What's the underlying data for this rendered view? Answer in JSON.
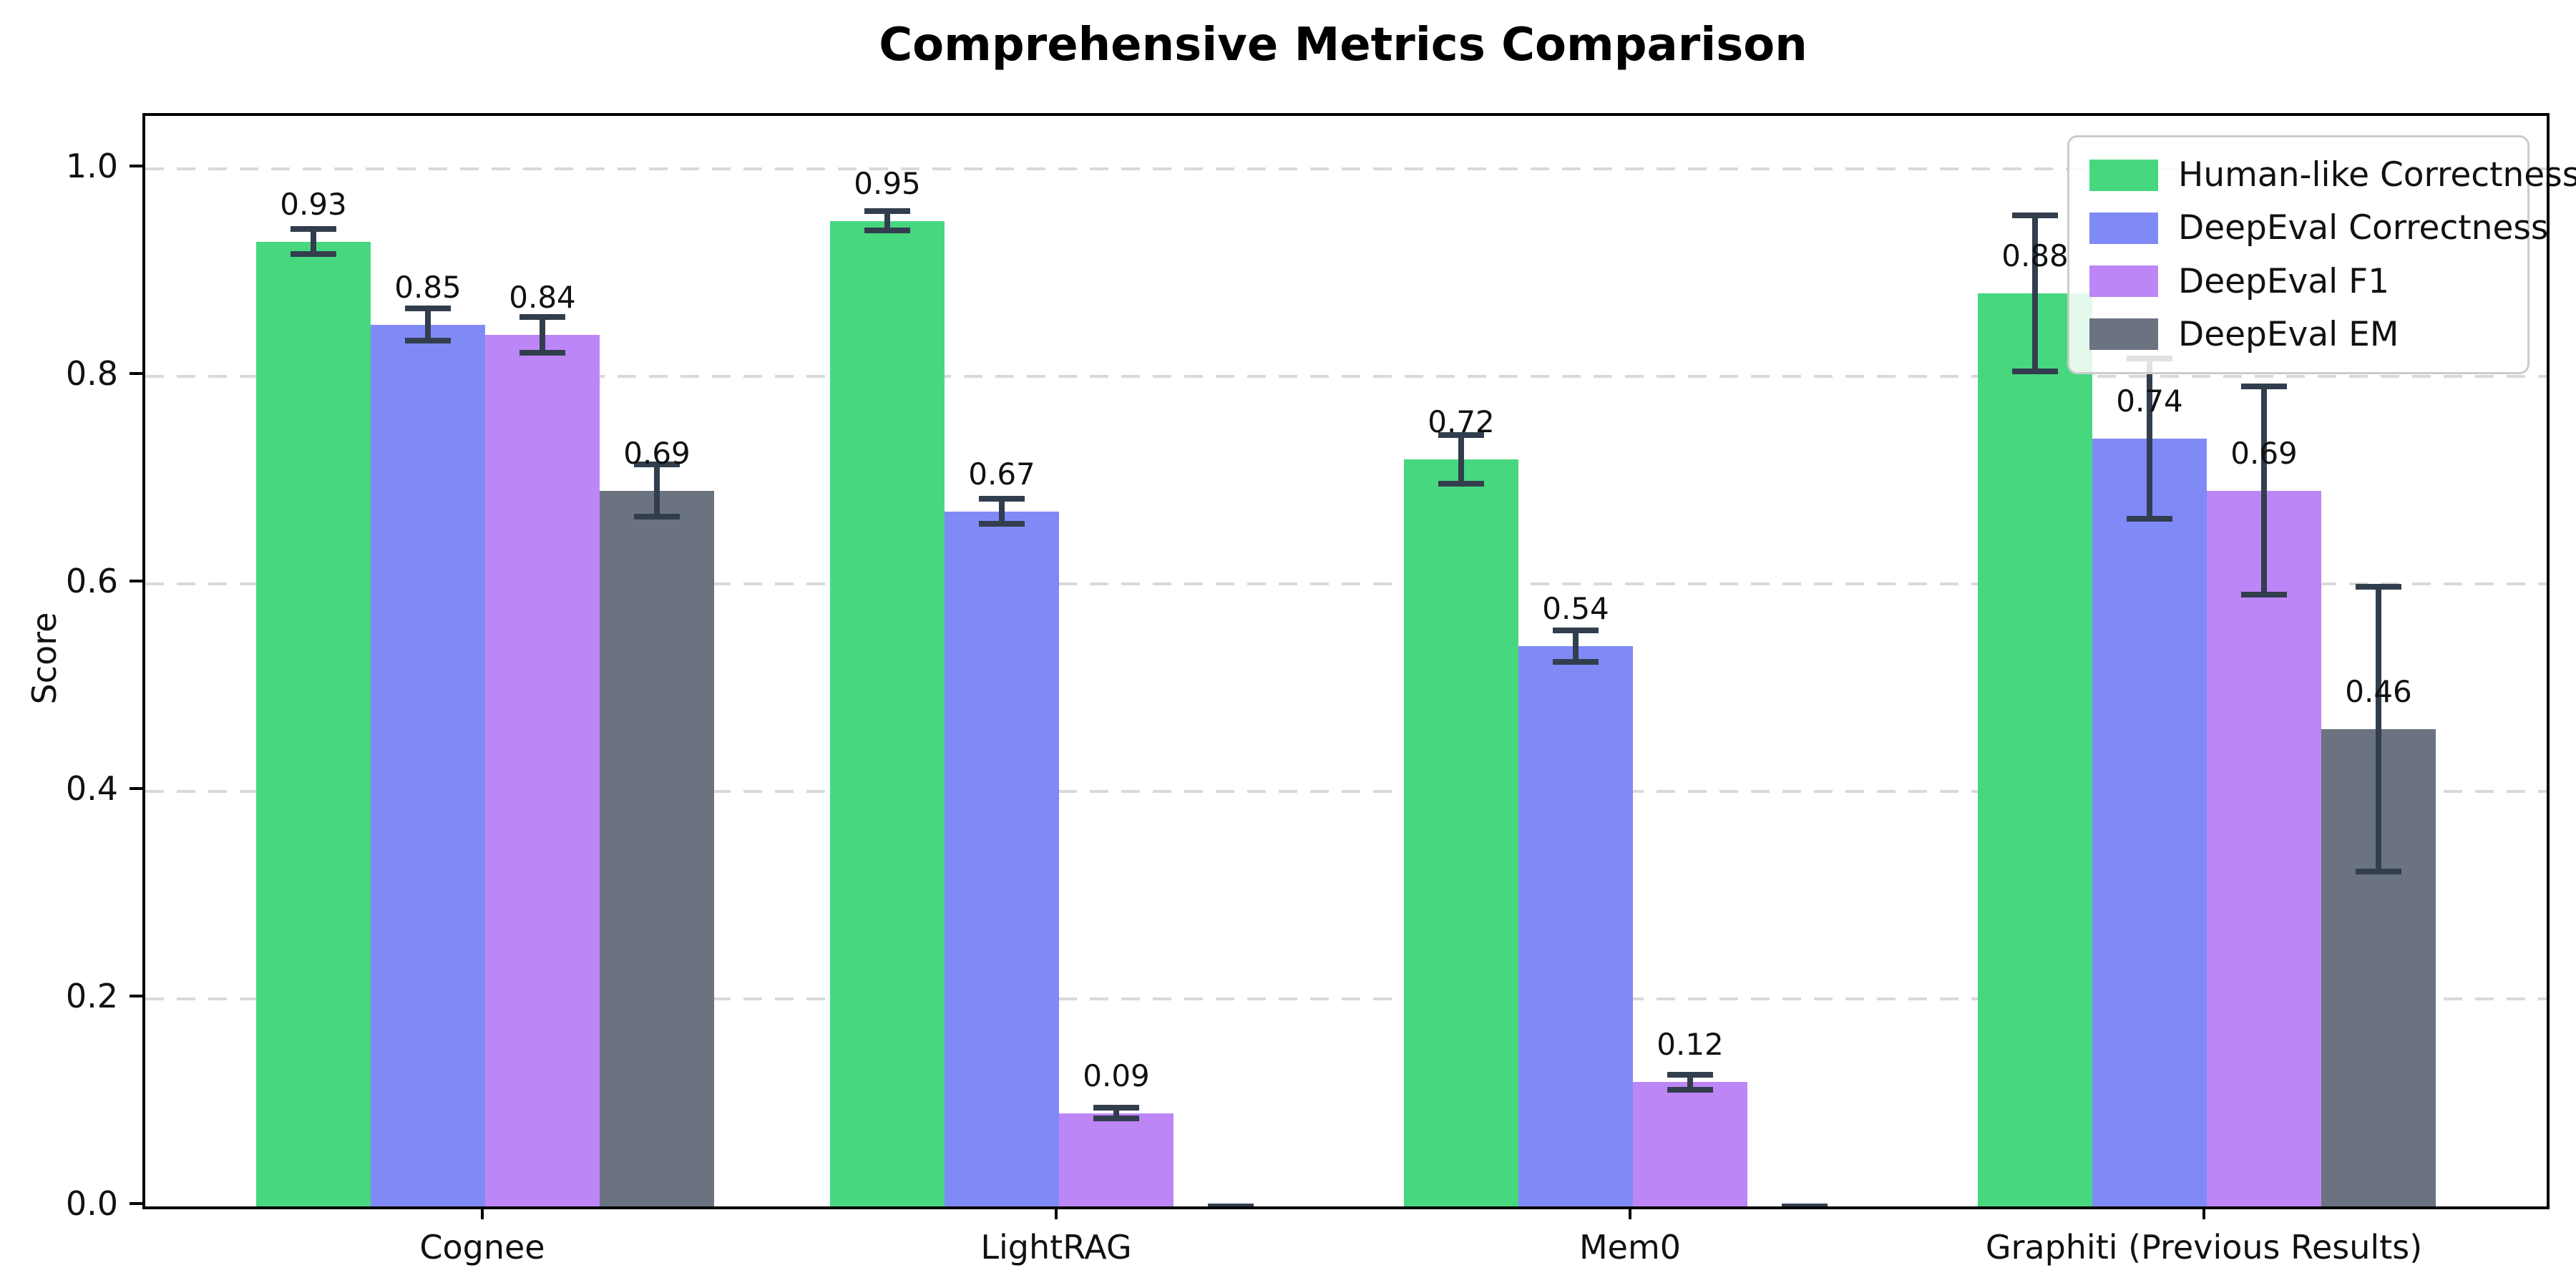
{
  "chart_data": {
    "type": "bar",
    "title": "Comprehensive Metrics Comparison",
    "ylabel": "Score",
    "categories": [
      "Cognee",
      "LightRAG",
      "Mem0",
      "Graphiti (Previous Results)"
    ],
    "series": [
      {
        "name": "Human-like Correctness",
        "color": "#47d87f",
        "values": [
          0.93,
          0.95,
          0.72,
          0.88
        ],
        "errors": [
          0.015,
          0.012,
          0.026,
          0.078
        ],
        "labels": [
          "0.93",
          "0.95",
          "0.72",
          "0.88"
        ]
      },
      {
        "name": "DeepEval Correctness",
        "color": "#808af7",
        "values": [
          0.85,
          0.67,
          0.54,
          0.74
        ],
        "errors": [
          0.018,
          0.015,
          0.018,
          0.08
        ],
        "labels": [
          "0.85",
          "0.67",
          "0.54",
          "0.74"
        ]
      },
      {
        "name": "DeepEval F1",
        "color": "#bd86f7",
        "values": [
          0.84,
          0.09,
          0.12,
          0.69
        ],
        "errors": [
          0.02,
          0.008,
          0.01,
          0.103
        ],
        "labels": [
          "0.84",
          "0.09",
          "0.12",
          "0.69"
        ]
      },
      {
        "name": "DeepEval EM",
        "color": "#6b7280",
        "values": [
          0.69,
          0.0,
          0.0,
          0.46
        ],
        "errors": [
          0.028,
          0.003,
          0.003,
          0.14
        ],
        "labels": [
          "0.69",
          "",
          "",
          "0.46"
        ]
      }
    ],
    "yticks": [
      "0.0",
      "0.2",
      "0.4",
      "0.6",
      "0.8",
      "1.0"
    ],
    "ylim": [
      0,
      1.051
    ],
    "grid": "horizontal-dashed",
    "legend_position": "upper right",
    "colors": {
      "error_bar": "#323e4d",
      "grid": "#d9d9d9",
      "spine": "#000000",
      "background": "#ffffff",
      "text": "#111111"
    }
  }
}
